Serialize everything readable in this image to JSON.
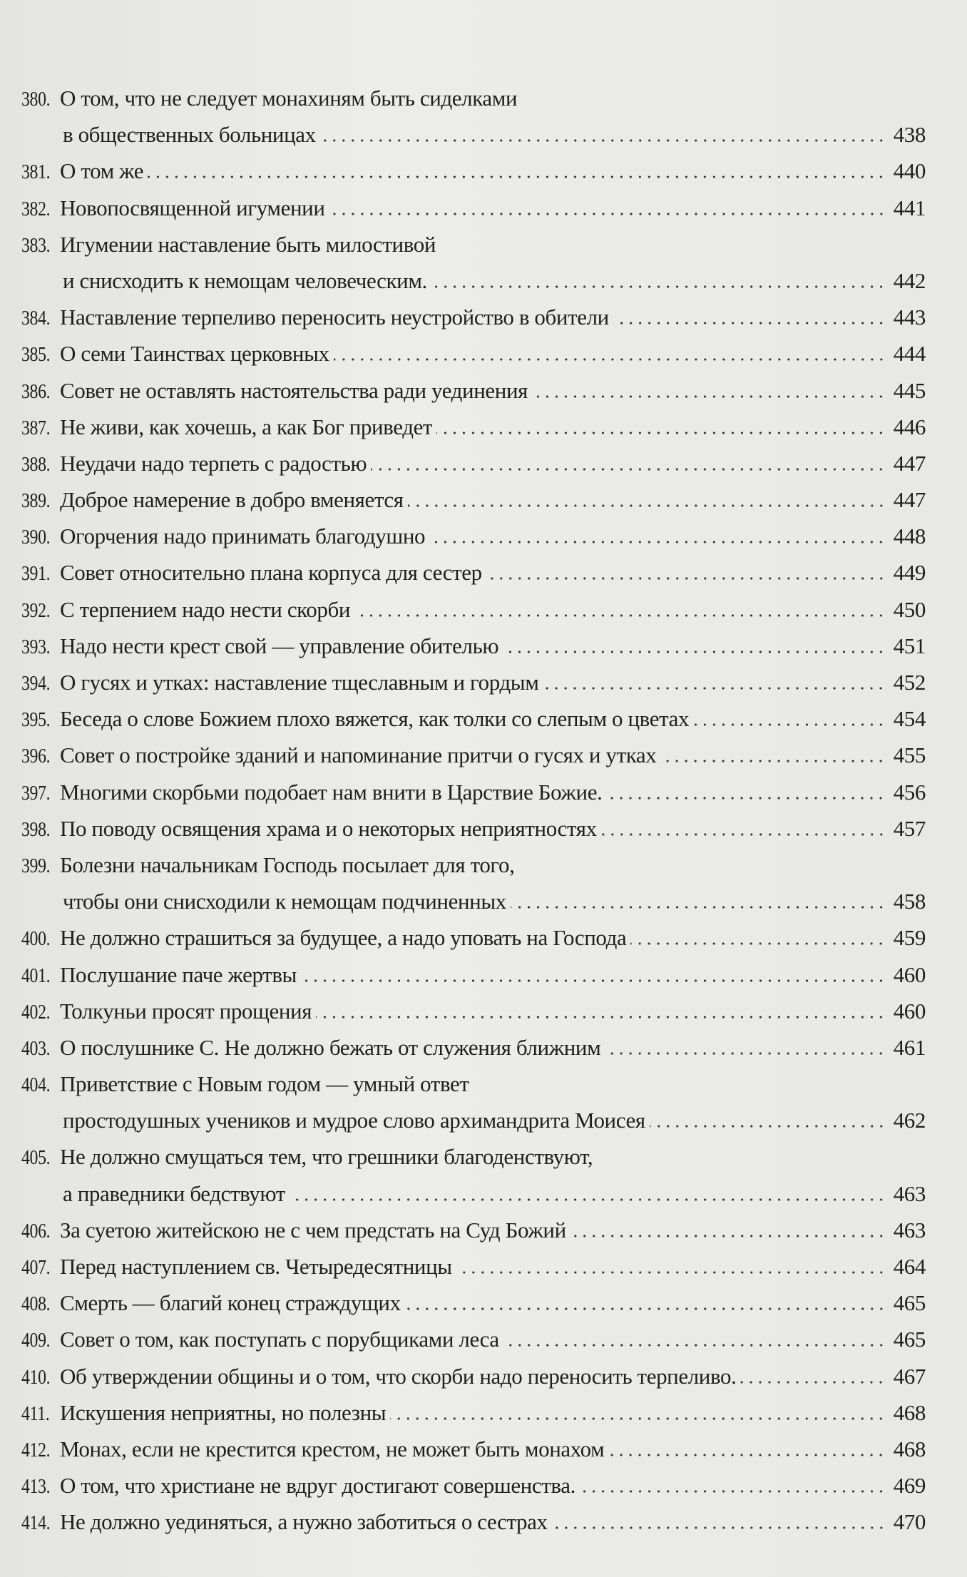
{
  "entries": [
    {
      "num": "380.",
      "lines": [
        "О том, что не следует монахиням быть сиделками",
        "в общественных больницах"
      ],
      "page": "438"
    },
    {
      "num": "381.",
      "lines": [
        "О том же"
      ],
      "page": "440"
    },
    {
      "num": "382.",
      "lines": [
        "Новопосвященной игумении"
      ],
      "page": "441"
    },
    {
      "num": "383.",
      "lines": [
        "Игумении наставление быть милостивой",
        "и снисходить к немощам человеческим."
      ],
      "page": "442"
    },
    {
      "num": "384.",
      "lines": [
        "Наставление терпеливо переносить неустройство в обители"
      ],
      "page": "443"
    },
    {
      "num": "385.",
      "lines": [
        "О семи Таинствах церковных"
      ],
      "page": "444"
    },
    {
      "num": "386.",
      "lines": [
        "Совет не оставлять настоятельства ради уединения"
      ],
      "page": "445"
    },
    {
      "num": "387.",
      "lines": [
        "Не живи, как хочешь, а как Бог приведет"
      ],
      "page": "446"
    },
    {
      "num": "388.",
      "lines": [
        "Неудачи надо терпеть с радостью"
      ],
      "page": "447"
    },
    {
      "num": "389.",
      "lines": [
        "Доброе намерение в добро вменяется"
      ],
      "page": "447"
    },
    {
      "num": "390.",
      "lines": [
        "Огорчения надо принимать благодушно"
      ],
      "page": "448"
    },
    {
      "num": "391.",
      "lines": [
        "Совет относительно плана корпуса для сестер"
      ],
      "page": "449"
    },
    {
      "num": "392.",
      "lines": [
        "С терпением надо нести скорби"
      ],
      "page": "450"
    },
    {
      "num": "393.",
      "lines": [
        "Надо нести крест свой — управление обителью"
      ],
      "page": "451"
    },
    {
      "num": "394.",
      "lines": [
        "О гусях и утках: наставление тщеславным и гордым"
      ],
      "page": "452"
    },
    {
      "num": "395.",
      "lines": [
        "Беседа о слове Божием плохо вяжется, как толки со слепым о цветах"
      ],
      "page": "454"
    },
    {
      "num": "396.",
      "lines": [
        "Совет о постройке зданий и напоминание притчи о гусях и утках"
      ],
      "page": "455"
    },
    {
      "num": "397.",
      "lines": [
        "Многими скорбьми подобает нам внити в Царствие Божие."
      ],
      "page": "456"
    },
    {
      "num": "398.",
      "lines": [
        "По поводу освящения храма и о некоторых неприятностях"
      ],
      "page": "457"
    },
    {
      "num": "399.",
      "lines": [
        "Болезни начальникам Господь посылает для того,",
        "чтобы они снисходили к немощам подчиненных"
      ],
      "page": "458"
    },
    {
      "num": "400.",
      "lines": [
        "Не должно страшиться за будущее, а надо уповать на Господа"
      ],
      "page": "459"
    },
    {
      "num": "401.",
      "lines": [
        "Послушание паче жертвы"
      ],
      "page": "460"
    },
    {
      "num": "402.",
      "lines": [
        "Толкуньи просят прощения"
      ],
      "page": "460"
    },
    {
      "num": "403.",
      "lines": [
        "О послушнике С. Не должно бежать от служения ближним"
      ],
      "page": "461"
    },
    {
      "num": "404.",
      "lines": [
        "Приветствие с Новым годом — умный ответ",
        "простодушных учеников и мудрое слово архимандрита Моисея"
      ],
      "page": "462"
    },
    {
      "num": "405.",
      "lines": [
        "Не должно смущаться тем, что грешники благоденствуют,",
        "а праведники бедствуют"
      ],
      "page": "463"
    },
    {
      "num": "406.",
      "lines": [
        "За суетою житейскою не с чем предстать на Суд Божий"
      ],
      "page": "463"
    },
    {
      "num": "407.",
      "lines": [
        "Перед наступлением св. Четыредесятницы"
      ],
      "page": "464"
    },
    {
      "num": "408.",
      "lines": [
        "Смерть — благий конец страждущих"
      ],
      "page": "465"
    },
    {
      "num": "409.",
      "lines": [
        "Совет о том, как поступать с порубщиками леса"
      ],
      "page": "465"
    },
    {
      "num": "410.",
      "lines": [
        "Об утверждении общины и о том, что скорби надо переносить терпеливо."
      ],
      "page": "467"
    },
    {
      "num": "411.",
      "lines": [
        "Искушения неприятны, но полезны"
      ],
      "page": "468"
    },
    {
      "num": "412.",
      "lines": [
        "Монах, если не крестится крестом, не может быть монахом"
      ],
      "page": "468"
    },
    {
      "num": "413.",
      "lines": [
        "О том, что христиане не вдруг достигают совершенства."
      ],
      "page": "469"
    },
    {
      "num": "414.",
      "lines": [
        "Не должно уединяться, а нужно заботиться о сестрах"
      ],
      "page": "470"
    }
  ]
}
